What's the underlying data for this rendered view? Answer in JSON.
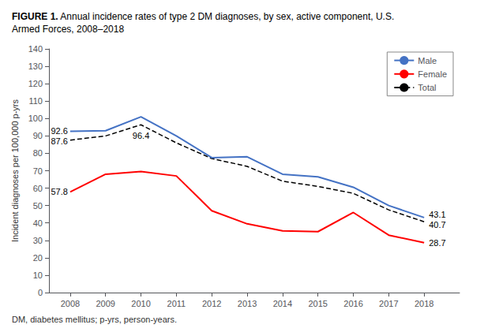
{
  "chart_data": {
    "type": "line",
    "title": "FIGURE 1. Annual incidence rates of type 2 DM diagnoses, by sex, active component, U.S.\nArmed Forces, 2008–2018",
    "ylabel": "Incident diagnoses per 100,000 p-yrs",
    "footnote": "DM, diabetes mellitus; p-yrs, person-years.",
    "x": [
      2008,
      2009,
      2010,
      2011,
      2012,
      2013,
      2014,
      2015,
      2016,
      2017,
      2018
    ],
    "series": [
      {
        "name": "Male",
        "color": "#4472C4",
        "line_style": "solid",
        "values": [
          92.6,
          93.0,
          101.0,
          90.0,
          77.5,
          78.0,
          68.0,
          66.5,
          60.5,
          50.0,
          43.1
        ]
      },
      {
        "name": "Female",
        "color": "#FF0000",
        "line_style": "solid",
        "values": [
          57.8,
          68.0,
          69.5,
          67.0,
          47.0,
          39.5,
          35.5,
          35.0,
          46.0,
          33.0,
          28.7
        ]
      },
      {
        "name": "Total",
        "color": "#000000",
        "line_style": "dashed",
        "values": [
          87.6,
          90.0,
          96.4,
          86.0,
          77.0,
          72.5,
          64.0,
          61.0,
          57.0,
          47.5,
          40.7
        ]
      }
    ],
    "xlim": [
      2007.4,
      2019
    ],
    "xticks": [
      2008,
      2009,
      2010,
      2011,
      2012,
      2013,
      2014,
      2015,
      2016,
      2017,
      2018
    ],
    "ylim": [
      0,
      140
    ],
    "yticks": [
      0,
      10,
      20,
      30,
      40,
      50,
      60,
      70,
      80,
      90,
      100,
      110,
      120,
      130,
      140
    ],
    "grid": false,
    "legend": "upper right",
    "annotations": [
      {
        "text": "92.6",
        "x": 2008,
        "y": 92.6
      },
      {
        "text": "87.6",
        "x": 2008,
        "y": 87.6
      },
      {
        "text": "57.8",
        "x": 2008,
        "y": 57.8
      },
      {
        "text": "96.4",
        "x": 2010,
        "y": 96.4
      },
      {
        "text": "43.1",
        "x": 2018,
        "y": 43.1
      },
      {
        "text": "40.7",
        "x": 2018,
        "y": 40.7
      },
      {
        "text": "28.7",
        "x": 2018,
        "y": 28.7
      }
    ]
  }
}
